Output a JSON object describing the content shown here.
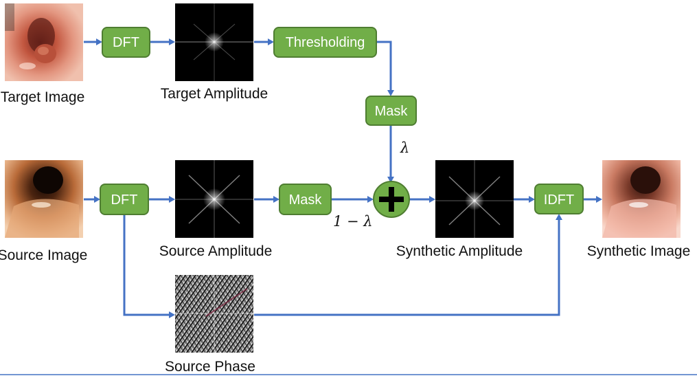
{
  "boxes": {
    "dft_target": "DFT",
    "thresholding": "Thresholding",
    "mask_target": "Mask",
    "dft_source": "DFT",
    "mask_source": "Mask",
    "idft": "IDFT"
  },
  "labels": {
    "target_image": "Target Image",
    "target_amplitude": "Target Amplitude",
    "source_image": "Source Image",
    "source_amplitude": "Source Amplitude",
    "source_phase": "Source Phase",
    "synthetic_amplitude": "Synthetic Amplitude",
    "synthetic_image": "Synthetic Image"
  },
  "symbols": {
    "lambda": "λ",
    "one_minus_lambda": "1 − λ",
    "plus": "+"
  },
  "colors": {
    "box_fill": "#71ae48",
    "box_border": "#4e7d31",
    "arrow": "#4472c4",
    "sum_node": "#71ae48"
  },
  "icons": {
    "target_image": "colonoscopy-photo-with-polyp",
    "source_image": "colonoscopy-photo-lumen",
    "synthetic_image": "colonoscopy-photo-restyled",
    "target_amplitude": "fft-amplitude-spectrum",
    "source_amplitude": "fft-amplitude-spectrum",
    "synthetic_amplitude": "fft-amplitude-spectrum",
    "source_phase": "fft-phase-spectrum"
  }
}
